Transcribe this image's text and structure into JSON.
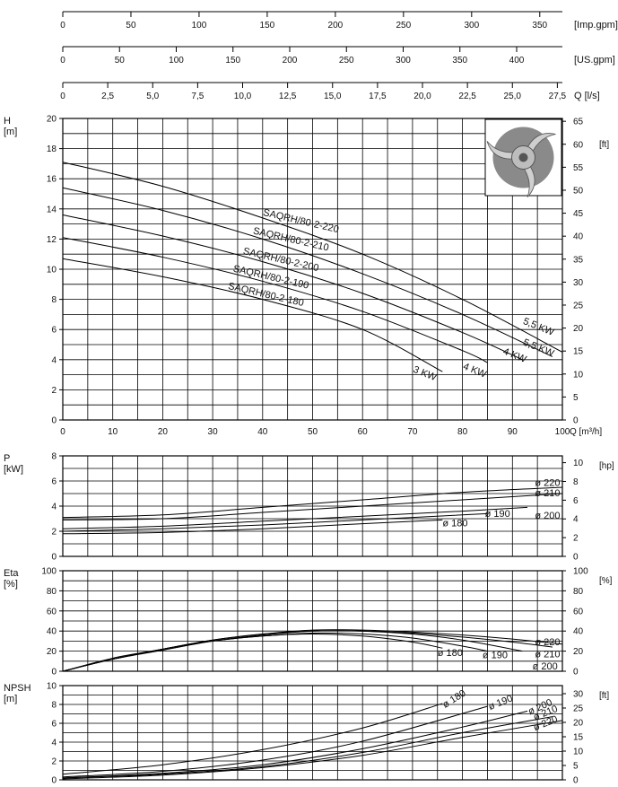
{
  "chart_data": [
    {
      "type": "axis",
      "id": "imp-gpm",
      "unit": "[Imp.gpm]",
      "ticks": [
        "0",
        "50",
        "100",
        "150",
        "200",
        "250",
        "300",
        "350"
      ],
      "tick_values": [
        0,
        50,
        100,
        150,
        200,
        250,
        300,
        350
      ],
      "range": [
        0,
        366.6
      ]
    },
    {
      "type": "axis",
      "id": "us-gpm",
      "unit": "[US.gpm]",
      "ticks": [
        "0",
        "50",
        "100",
        "150",
        "200",
        "250",
        "300",
        "350",
        "400"
      ],
      "tick_values": [
        0,
        50,
        100,
        150,
        200,
        250,
        300,
        350,
        400
      ],
      "range": [
        0,
        440.3
      ]
    },
    {
      "type": "axis",
      "id": "ls",
      "unit": "Q [l/s]",
      "ticks": [
        "0",
        "2,5",
        "5,0",
        "7,5",
        "10,0",
        "12,5",
        "15,0",
        "17,5",
        "20,0",
        "22,5",
        "25,0",
        "27,5"
      ],
      "tick_values": [
        0,
        2.5,
        5,
        7.5,
        10,
        12.5,
        15,
        17.5,
        20,
        22.5,
        25,
        27.5
      ],
      "range": [
        0,
        27.78
      ]
    },
    {
      "type": "line",
      "id": "head",
      "ylabel_lines": [
        "H",
        "[m]"
      ],
      "xlabel": "Q [m³/h]",
      "xlim": [
        0,
        100
      ],
      "ylim": [
        0,
        20
      ],
      "x_ticks": [
        "0",
        "10",
        "20",
        "30",
        "40",
        "50",
        "60",
        "70",
        "80",
        "90",
        "100"
      ],
      "y_ticks": [
        "0",
        "2",
        "4",
        "6",
        "8",
        "10",
        "12",
        "14",
        "16",
        "18",
        "20"
      ],
      "right_unit": "[ft]",
      "right_ticks": [
        "0",
        "5",
        "10",
        "15",
        "20",
        "25",
        "30",
        "35",
        "40",
        "45",
        "50",
        "55",
        "60",
        "65"
      ],
      "right_factor": 3.28084,
      "series": [
        {
          "name": "SAQRH/80-2-220",
          "power_label": "5,5 KW",
          "x": [
            0,
            20,
            40,
            60,
            80,
            100
          ],
          "y": [
            17.1,
            15.5,
            13.4,
            11,
            8,
            4.5
          ]
        },
        {
          "name": "SAQRH/80-2-210",
          "power_label": "5,5 KW",
          "x": [
            0,
            20,
            40,
            60,
            80,
            98
          ],
          "y": [
            15.4,
            13.9,
            12,
            9.7,
            7,
            4.2
          ]
        },
        {
          "name": "SAQRH/80-2-200",
          "power_label": "4 KW",
          "x": [
            0,
            20,
            40,
            60,
            80,
            92
          ],
          "y": [
            13.6,
            12.2,
            10.5,
            8.4,
            5.8,
            4
          ]
        },
        {
          "name": "SAQRH/80-2-190",
          "power_label": "4 KW",
          "x": [
            0,
            20,
            40,
            60,
            80,
            85
          ],
          "y": [
            12.1,
            10.8,
            9.2,
            7.2,
            4.6,
            3.8
          ]
        },
        {
          "name": "SAQRH/80-2-180",
          "power_label": "3 KW",
          "x": [
            0,
            20,
            40,
            60,
            76
          ],
          "y": [
            10.7,
            9.5,
            8,
            6,
            3.2
          ]
        }
      ]
    },
    {
      "type": "line",
      "id": "power",
      "ylabel_lines": [
        "P",
        "[kW]"
      ],
      "xlim": [
        0,
        100
      ],
      "ylim": [
        0,
        8
      ],
      "y_ticks": [
        "0",
        "2",
        "4",
        "6",
        "8"
      ],
      "right_unit": "[hp]",
      "right_ticks": [
        "0",
        "2",
        "4",
        "6",
        "8",
        "10"
      ],
      "right_factor": 1.341,
      "series": [
        {
          "name": "ø 220",
          "x": [
            0,
            20,
            40,
            60,
            80,
            100
          ],
          "y": [
            3.1,
            3.3,
            3.9,
            4.5,
            5.1,
            5.5
          ]
        },
        {
          "name": "ø 210",
          "x": [
            0,
            20,
            40,
            60,
            80,
            100
          ],
          "y": [
            2.9,
            3,
            3.5,
            4,
            4.5,
            5
          ]
        },
        {
          "name": "ø 200",
          "x": [
            0,
            20,
            40,
            60,
            80,
            93
          ],
          "y": [
            2.2,
            2.4,
            2.8,
            3.2,
            3.6,
            3.9
          ]
        },
        {
          "name": "ø 190",
          "x": [
            0,
            20,
            40,
            60,
            85
          ],
          "y": [
            2,
            2.2,
            2.5,
            2.9,
            3.4
          ]
        },
        {
          "name": "ø 180",
          "x": [
            0,
            20,
            40,
            60,
            76
          ],
          "y": [
            1.8,
            1.9,
            2.2,
            2.6,
            2.9
          ]
        }
      ]
    },
    {
      "type": "line",
      "id": "efficiency",
      "ylabel_lines": [
        "Eta",
        "[%]"
      ],
      "xlim": [
        0,
        100
      ],
      "ylim": [
        0,
        100
      ],
      "y_ticks": [
        "0",
        "20",
        "40",
        "60",
        "80",
        "100"
      ],
      "right_unit": "[%]",
      "right_ticks": [
        "0",
        "20",
        "40",
        "60",
        "80",
        "100"
      ],
      "right_factor": 1,
      "series": [
        {
          "name": "ø 220",
          "x": [
            0,
            10,
            20,
            30,
            40,
            50,
            60,
            70,
            80,
            90,
            100
          ],
          "y": [
            0,
            13,
            22,
            31,
            37,
            41,
            41,
            39,
            36,
            32,
            27
          ]
        },
        {
          "name": "ø 210",
          "x": [
            0,
            10,
            20,
            30,
            40,
            50,
            60,
            70,
            80,
            90,
            98
          ],
          "y": [
            0,
            12,
            21,
            30,
            36,
            40,
            40,
            38,
            34,
            29,
            24
          ]
        },
        {
          "name": "ø 200",
          "x": [
            0,
            10,
            20,
            30,
            40,
            50,
            60,
            70,
            80,
            92
          ],
          "y": [
            0,
            12,
            22,
            31,
            37,
            40,
            40,
            37,
            31,
            20
          ]
        },
        {
          "name": "ø 190",
          "x": [
            0,
            10,
            20,
            30,
            40,
            50,
            60,
            70,
            80,
            85
          ],
          "y": [
            0,
            12,
            22,
            30,
            35,
            38,
            37,
            33,
            25,
            20
          ]
        },
        {
          "name": "ø 180",
          "x": [
            0,
            10,
            20,
            30,
            40,
            50,
            60,
            70,
            76
          ],
          "y": [
            0,
            12,
            22,
            30,
            35,
            37,
            35,
            29,
            23
          ]
        }
      ]
    },
    {
      "type": "line",
      "id": "npsh",
      "ylabel_lines": [
        "NPSH",
        "[m]"
      ],
      "xlim": [
        0,
        100
      ],
      "ylim": [
        0,
        10
      ],
      "y_ticks": [
        "0",
        "2",
        "4",
        "6",
        "8",
        "10"
      ],
      "right_unit": "[ft]",
      "right_ticks": [
        "0",
        "5",
        "10",
        "15",
        "20",
        "25",
        "30"
      ],
      "right_factor": 3.28084,
      "series": [
        {
          "name": "ø 180",
          "x": [
            0,
            20,
            40,
            60,
            76
          ],
          "y": [
            0.6,
            1.6,
            3.2,
            5.5,
            8.1
          ]
        },
        {
          "name": "ø 190",
          "x": [
            0,
            20,
            40,
            60,
            85
          ],
          "y": [
            0.3,
            0.9,
            2.1,
            4.1,
            7.8
          ]
        },
        {
          "name": "ø 200",
          "x": [
            0,
            20,
            40,
            60,
            80,
            93
          ],
          "y": [
            0.2,
            0.7,
            1.6,
            3.3,
            5.6,
            7.3
          ]
        },
        {
          "name": "ø 210",
          "x": [
            0,
            20,
            40,
            60,
            80,
            98
          ],
          "y": [
            0.2,
            0.6,
            1.4,
            2.9,
            5,
            6.7
          ]
        },
        {
          "name": "ø 220",
          "x": [
            0,
            20,
            40,
            60,
            80,
            100
          ],
          "y": [
            0.1,
            0.5,
            1.3,
            2.6,
            4.5,
            6.3
          ]
        }
      ]
    }
  ]
}
